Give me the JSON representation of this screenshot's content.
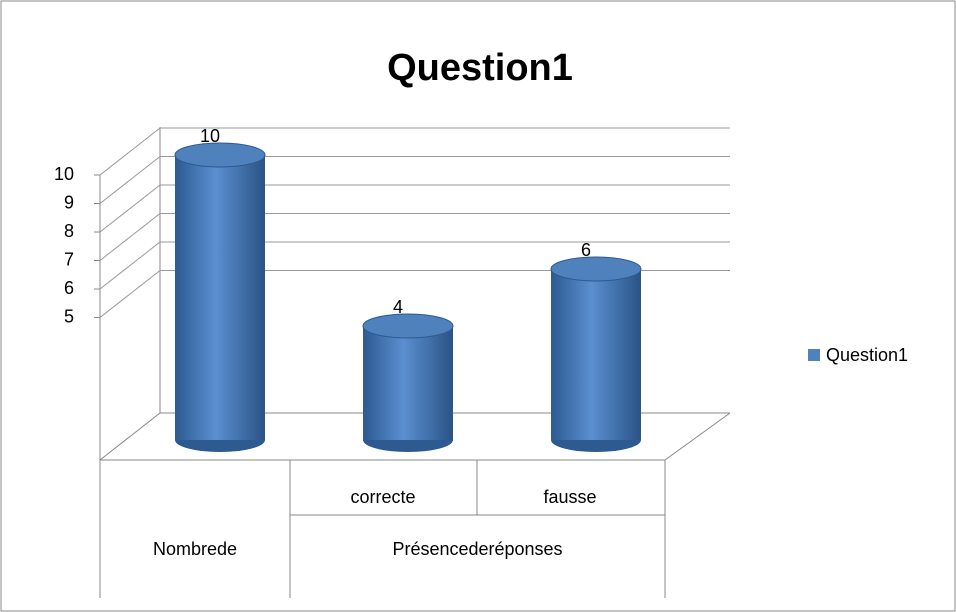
{
  "chart_data": {
    "type": "bar3d",
    "title": "Question1",
    "categories": [
      null,
      "correcte",
      "fausse"
    ],
    "category_groups": [
      {
        "name": "Nombrede",
        "span": 1
      },
      {
        "name": "Présencederéponses",
        "span": 2
      }
    ],
    "series": [
      {
        "name": "Question1",
        "color": "#4f81bd",
        "values": [
          10,
          4,
          6
        ]
      }
    ],
    "ylim": [
      0,
      10
    ],
    "yticks": [
      5,
      6,
      7,
      8,
      9,
      10
    ],
    "grid": true,
    "legend": "right"
  }
}
